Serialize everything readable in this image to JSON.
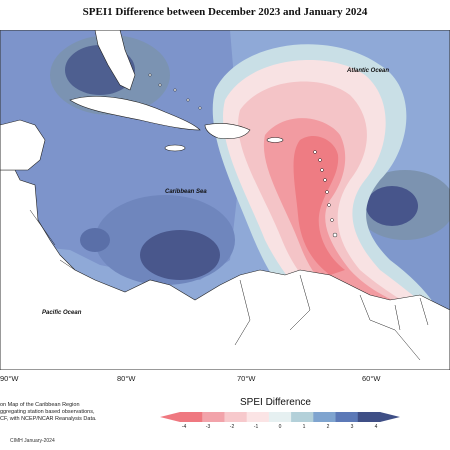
{
  "title": "SPEI1 Difference between December 2023 and January 2024",
  "labels": {
    "atlantic": "Atlantic Ocean",
    "caribbean": "Caribbean Sea",
    "pacific": "Pacific Ocean"
  },
  "longitudes": [
    "90°W",
    "80°W",
    "70°W",
    "60°W"
  ],
  "notes": [
    "on Map of the Caribbean Region",
    "ggregating station based observations,",
    "CF, with NCEP/NCAR Reanalysis Data."
  ],
  "credit": "CIMH January-2024",
  "legend": {
    "title": "SPEI Difference",
    "ticks": [
      "-4",
      "-3",
      "-2",
      "-1",
      "0",
      "1",
      "2",
      "3",
      "4"
    ],
    "colors": [
      "#ef7880",
      "#f2a3aa",
      "#f7c9cc",
      "#fbe4e5",
      "#e6f0f1",
      "#b3d0d9",
      "#7fa4cf",
      "#5c79b7",
      "#3f4f86"
    ]
  }
}
